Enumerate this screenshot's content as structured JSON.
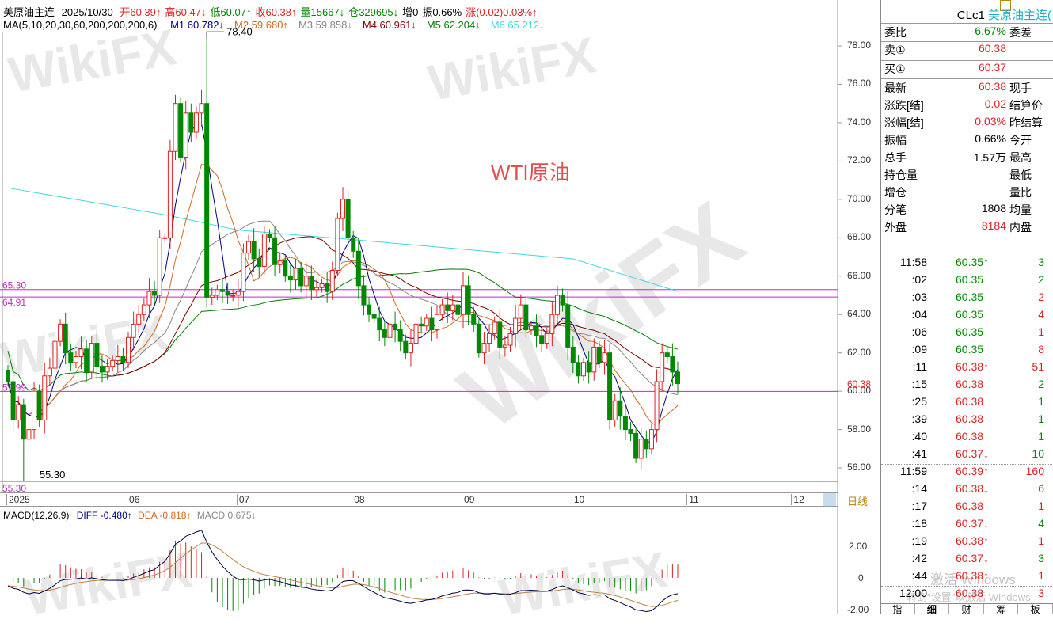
{
  "header": {
    "symbol": "美原油主连",
    "date": "2025/10/30",
    "quotes": [
      {
        "text": "开60.39↑",
        "color": "r"
      },
      {
        "text": "高60.47↓",
        "color": "r"
      },
      {
        "text": "低60.07↑",
        "color": "g"
      },
      {
        "text": "收60.38↑",
        "color": "r"
      },
      {
        "text": "量15667↓",
        "color": "g"
      },
      {
        "text": "仓329695↓",
        "color": "g"
      },
      {
        "text": "增0",
        "color": "k"
      },
      {
        "text": "振0.66%",
        "color": "k"
      },
      {
        "text": "涨(0.02)0.03%↑",
        "color": "r"
      }
    ],
    "ma_label": "MA(5,10,20,30,60,200,200,200,6)",
    "ma": [
      {
        "text": "M1 60.782↓",
        "color": "#000080"
      },
      {
        "text": "M2 59.680↑",
        "color": "#d2691e"
      },
      {
        "text": "M3 59.858↓",
        "color": "#888888"
      },
      {
        "text": "M4 60.961↓",
        "color": "#800000"
      },
      {
        "text": "M5 62.204↓",
        "color": "#008000"
      },
      {
        "text": "M6 65.212↓",
        "color": "#40d8e0"
      }
    ]
  },
  "overlay_title": "WTI原油",
  "watermark": "WikiFX",
  "windows_notice": [
    "激活 Windows",
    "转到\"设置\"以激活 Windows"
  ],
  "chart_data": {
    "type": "candlestick",
    "price_ticks": [
      "78.00",
      "76.00",
      "74.00",
      "72.00",
      "70.00",
      "68.00",
      "66.00",
      "64.00",
      "62.00",
      "60.00",
      "58.00",
      "56.00"
    ],
    "ylim": [
      55,
      79
    ],
    "current_price": "60.38",
    "x_labels": [
      {
        "label": "2025",
        "index": 0
      },
      {
        "label": "06",
        "index": 23
      },
      {
        "label": "07",
        "index": 44
      },
      {
        "label": "08",
        "index": 66
      },
      {
        "label": "09",
        "index": 87
      },
      {
        "label": "10",
        "index": 108
      },
      {
        "label": "11",
        "index": 130
      },
      {
        "label": "12",
        "index": 150
      }
    ],
    "period_label": "日线",
    "closes": [
      60.5,
      58.5,
      59.3,
      57.5,
      58.0,
      60.0,
      58.5,
      60.8,
      61.2,
      62.6,
      63.5,
      62.0,
      61.5,
      61.8,
      62.2,
      61.0,
      62.5,
      61.3,
      61.0,
      61.3,
      61.6,
      61.8,
      61.5,
      62.8,
      63.5,
      64.0,
      64.5,
      65.2,
      65.0,
      68.0,
      68.0,
      72.5,
      75.0,
      72.2,
      74.5,
      73.5,
      74.5,
      75.0,
      64.9,
      65.0,
      65.3,
      65.2,
      65.0,
      65.0,
      65.2,
      67.2,
      67.8,
      66.9,
      66.5,
      68.2,
      68.0,
      66.6,
      66.8,
      66.0,
      65.8,
      66.4,
      65.5,
      66.0,
      65.3,
      65.4,
      65.6,
      65.2,
      66.3,
      69.0,
      70.0,
      68.0,
      67.3,
      65.5,
      64.5,
      64.0,
      63.8,
      63.2,
      62.8,
      63.5,
      63.2,
      62.6,
      62.0,
      62.5,
      63.5,
      63.4,
      63.8,
      63.2,
      64.0,
      64.5,
      64.2,
      64.5,
      64.0,
      65.5,
      64.0,
      63.5,
      62.0,
      62.5,
      63.0,
      63.6,
      62.3,
      62.4,
      63.0,
      63.8,
      64.5,
      63.2,
      63.4,
      62.9,
      62.5,
      63.0,
      64.0,
      65.0,
      64.5,
      62.3,
      61.5,
      60.8,
      61.5,
      61.0,
      62.3,
      61.5,
      62.0,
      58.5,
      59.5,
      58.7,
      58.0,
      57.8,
      56.5,
      57.5,
      57.0,
      58.0,
      60.5,
      62.0,
      61.8,
      61.0,
      60.4
    ],
    "annotations": [
      {
        "label": "78.40",
        "index": 38,
        "price": 78.4
      },
      {
        "label": "55.30",
        "index": 3,
        "price": 55.3
      }
    ],
    "levels": [
      {
        "label": "65.30",
        "price": 65.3
      },
      {
        "label": "64.91",
        "price": 64.91
      },
      {
        "label": "59.99",
        "price": 59.99
      },
      {
        "label": "55.30",
        "price": 55.3
      }
    ],
    "ma6_knots": [
      [
        0,
        70.6
      ],
      [
        30,
        69.2
      ],
      [
        44,
        68.4
      ],
      [
        66,
        67.9
      ],
      [
        87,
        67.4
      ],
      [
        108,
        66.9
      ],
      [
        128,
        65.2
      ]
    ],
    "macd": {
      "label": "MACD(12,26,9)",
      "diff": "DIFF -0.480↑",
      "dea": "DEA -0.818↑",
      "macd": "MACD 0.675↓",
      "ticks": [
        "2.00",
        "0",
        "-2.00"
      ]
    }
  },
  "right_panel": {
    "title_code": "CLc1",
    "title_name": "美原油主连(",
    "ratio": {
      "label": "委比",
      "value": "-6.67%",
      "label2": "委差"
    },
    "sell": {
      "label": "卖①",
      "value": "60.38"
    },
    "buy": {
      "label": "买①",
      "value": "60.37"
    },
    "stats": [
      {
        "label": "最新",
        "value": "60.38",
        "color": "r",
        "label2": "现手"
      },
      {
        "label": "涨跌[结]",
        "value": "0.02",
        "color": "r",
        "label2": "结算价"
      },
      {
        "label": "涨幅[结]",
        "value": "0.03%",
        "color": "r",
        "label2": "昨结算"
      },
      {
        "label": "振幅",
        "value": "0.66%",
        "color": "k",
        "label2": "今开"
      },
      {
        "label": "总手",
        "value": "1.57万",
        "color": "k",
        "label2": "最高"
      },
      {
        "label": "持仓量",
        "value": "",
        "color": "k",
        "label2": "最低"
      },
      {
        "label": "增仓",
        "value": "",
        "color": "k",
        "label2": "量比"
      },
      {
        "label": "分笔",
        "value": "1808",
        "color": "k",
        "label2": "均量"
      },
      {
        "label": "外盘",
        "value": "8184",
        "color": "r",
        "label2": "内盘"
      }
    ],
    "ticks": [
      {
        "time": "11:58",
        "price": "60.35↑",
        "pc": "g",
        "vol": "3",
        "vc": "g"
      },
      {
        "time": ":02",
        "price": "60.35",
        "pc": "g",
        "vol": "2",
        "vc": "g"
      },
      {
        "time": ":03",
        "price": "60.35",
        "pc": "g",
        "vol": "2",
        "vc": "r"
      },
      {
        "time": ":04",
        "price": "60.35",
        "pc": "g",
        "vol": "4",
        "vc": "r"
      },
      {
        "time": ":06",
        "price": "60.35",
        "pc": "g",
        "vol": "1",
        "vc": "r"
      },
      {
        "time": ":09",
        "price": "60.35",
        "pc": "g",
        "vol": "8",
        "vc": "r"
      },
      {
        "time": ":11",
        "price": "60.38↑",
        "pc": "r",
        "vol": "51",
        "vc": "r"
      },
      {
        "time": ":15",
        "price": "60.38",
        "pc": "r",
        "vol": "2",
        "vc": "g"
      },
      {
        "time": ":25",
        "price": "60.38",
        "pc": "r",
        "vol": "1",
        "vc": "g"
      },
      {
        "time": ":39",
        "price": "60.38",
        "pc": "r",
        "vol": "1",
        "vc": "g"
      },
      {
        "time": ":40",
        "price": "60.38",
        "pc": "r",
        "vol": "1",
        "vc": "g"
      },
      {
        "time": ":41",
        "price": "60.37↓",
        "pc": "r",
        "vol": "10",
        "vc": "g"
      },
      {
        "time": "11:59",
        "price": "60.39↑",
        "pc": "r",
        "vol": "160",
        "vc": "r"
      },
      {
        "time": ":14",
        "price": "60.38↓",
        "pc": "r",
        "vol": "6",
        "vc": "g"
      },
      {
        "time": ":17",
        "price": "60.38",
        "pc": "r",
        "vol": "1",
        "vc": "r"
      },
      {
        "time": ":18",
        "price": "60.37↓",
        "pc": "r",
        "vol": "4",
        "vc": "g"
      },
      {
        "time": ":19",
        "price": "60.38↑",
        "pc": "r",
        "vol": "1",
        "vc": "r"
      },
      {
        "time": ":42",
        "price": "60.37↓",
        "pc": "r",
        "vol": "3",
        "vc": "g"
      },
      {
        "time": ":44",
        "price": "60.38↑",
        "pc": "r",
        "vol": "1",
        "vc": "r"
      },
      {
        "time": "12:00",
        "price": "60.38",
        "pc": "r",
        "vol": "3",
        "vc": "r"
      }
    ],
    "tabs": [
      "指",
      "细",
      "财",
      "筹",
      "板"
    ]
  }
}
